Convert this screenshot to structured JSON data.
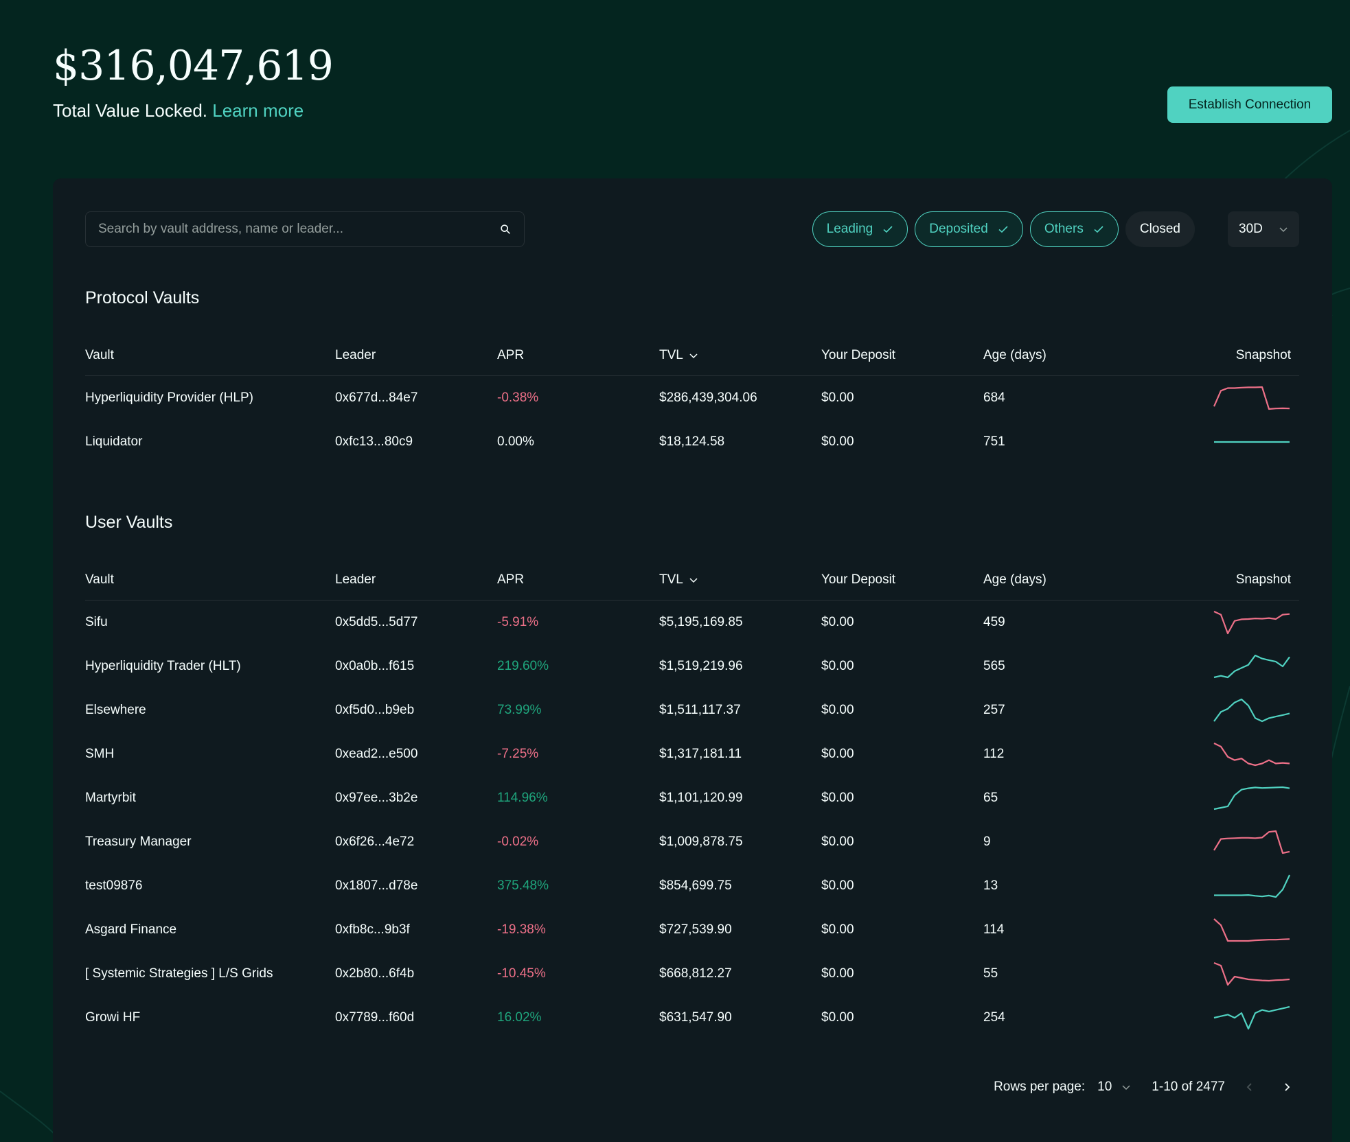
{
  "header": {
    "tvl_amount": "$316,047,619",
    "tvl_label": "Total Value Locked.",
    "learn_more": "Learn more",
    "connect_button": "Establish Connection"
  },
  "search": {
    "placeholder": "Search by vault address, name or leader..."
  },
  "filters": [
    {
      "label": "Leading",
      "active": true
    },
    {
      "label": "Deposited",
      "active": true
    },
    {
      "label": "Others",
      "active": true
    },
    {
      "label": "Closed",
      "active": false
    }
  ],
  "period": {
    "selected": "30D"
  },
  "columns": {
    "vault": "Vault",
    "leader": "Leader",
    "apr": "APR",
    "tvl": "TVL",
    "deposit": "Your Deposit",
    "age": "Age (days)",
    "snapshot": "Snapshot"
  },
  "colors": {
    "accent": "#50d2c1",
    "negative": "#ed7088",
    "positive": "#1fa67d"
  },
  "protocol_vaults": {
    "title": "Protocol Vaults",
    "rows": [
      {
        "vault": "Hyperliquidity Provider (HLP)",
        "leader": "0x677d...84e7",
        "apr": "-0.38%",
        "trend": "neg",
        "tvl": "$286,439,304.06",
        "deposit": "$0.00",
        "age": "684",
        "snapshot": [
          2,
          8,
          9,
          9,
          9.2,
          9.3,
          9.3,
          9.4,
          1,
          1.2,
          1.3,
          1.2
        ]
      },
      {
        "vault": "Liquidator",
        "leader": "0xfc13...80c9",
        "apr": "0.00%",
        "trend": "zero",
        "tvl": "$18,124.58",
        "deposit": "$0.00",
        "age": "751",
        "snapshot": [
          5,
          5,
          5,
          5,
          5,
          5,
          5,
          5,
          5,
          5,
          5,
          5
        ]
      }
    ]
  },
  "user_vaults": {
    "title": "User Vaults",
    "rows": [
      {
        "vault": "Sifu",
        "leader": "0x5dd5...5d77",
        "apr": "-5.91%",
        "trend": "neg",
        "tvl": "$5,195,169.85",
        "deposit": "$0.00",
        "age": "459",
        "snapshot": [
          9,
          8,
          2,
          6,
          6.5,
          6.6,
          6.8,
          6.7,
          6.9,
          6.6,
          8,
          8.2
        ]
      },
      {
        "vault": "Hyperliquidity Trader (HLT)",
        "leader": "0x0a0b...f615",
        "apr": "219.60%",
        "trend": "pos",
        "tvl": "$1,519,219.96",
        "deposit": "$0.00",
        "age": "565",
        "snapshot": [
          2,
          2.5,
          2,
          4,
          5,
          6,
          9,
          8,
          7.5,
          7,
          5.5,
          8.5
        ]
      },
      {
        "vault": "Elsewhere",
        "leader": "0xf5d0...b9eb",
        "apr": "73.99%",
        "trend": "pos",
        "tvl": "$1,511,117.37",
        "deposit": "$0.00",
        "age": "257",
        "snapshot": [
          2,
          5,
          6,
          8,
          9,
          7,
          3,
          2,
          3,
          3.5,
          4,
          4.5
        ]
      },
      {
        "vault": "SMH",
        "leader": "0xead2...e500",
        "apr": "-7.25%",
        "trend": "neg",
        "tvl": "$1,317,181.11",
        "deposit": "$0.00",
        "age": "112",
        "snapshot": [
          9,
          8,
          5,
          4,
          4.5,
          3,
          2.5,
          3,
          4,
          3,
          3.2,
          3
        ]
      },
      {
        "vault": "Martyrbit",
        "leader": "0x97ee...3b2e",
        "apr": "114.96%",
        "trend": "pos",
        "tvl": "$1,101,120.99",
        "deposit": "$0.00",
        "age": "65",
        "snapshot": [
          1,
          1.5,
          2,
          6,
          8,
          8.5,
          8.8,
          8.6,
          8.7,
          8.8,
          8.9,
          8.5
        ]
      },
      {
        "vault": "Treasury Manager",
        "leader": "0x6f26...4e72",
        "apr": "-0.02%",
        "trend": "neg",
        "tvl": "$1,009,878.75",
        "deposit": "$0.00",
        "age": "9",
        "snapshot": [
          2,
          6,
          6.2,
          6.3,
          6.4,
          6.4,
          6.3,
          6.5,
          8.5,
          8.8,
          1,
          1.5
        ]
      },
      {
        "vault": "test09876",
        "leader": "0x1807...d78e",
        "apr": "375.48%",
        "trend": "pos",
        "tvl": "$854,699.75",
        "deposit": "$0.00",
        "age": "13",
        "snapshot": [
          2,
          2,
          2,
          2,
          2,
          2.1,
          1.8,
          1.6,
          1.9,
          1.4,
          4,
          9
        ]
      },
      {
        "vault": "Asgard Finance",
        "leader": "0xfb8c...9b3f",
        "apr": "-19.38%",
        "trend": "neg",
        "tvl": "$727,539.90",
        "deposit": "$0.00",
        "age": "114",
        "snapshot": [
          9,
          7,
          2,
          2,
          2,
          2,
          2.2,
          2.3,
          2.4,
          2.4,
          2.5,
          2.6
        ]
      },
      {
        "vault": "[ Systemic Strategies ] L/S Grids",
        "leader": "0x2b80...6f4b",
        "apr": "-10.45%",
        "trend": "neg",
        "tvl": "$668,812.27",
        "deposit": "$0.00",
        "age": "55",
        "snapshot": [
          9,
          8,
          1,
          4,
          3.5,
          3,
          2.8,
          2.6,
          2.5,
          2.7,
          2.8,
          3
        ]
      },
      {
        "vault": "Growi HF",
        "leader": "0x7789...f60d",
        "apr": "16.02%",
        "trend": "pos",
        "tvl": "$631,547.90",
        "deposit": "$0.00",
        "age": "254",
        "snapshot": [
          5,
          5.5,
          6,
          5,
          6.5,
          1.5,
          6.5,
          7.5,
          7,
          7.5,
          8,
          8.5
        ]
      }
    ]
  },
  "pagination": {
    "rows_label": "Rows per page:",
    "rows_value": "10",
    "range": "1-10 of 2477"
  }
}
